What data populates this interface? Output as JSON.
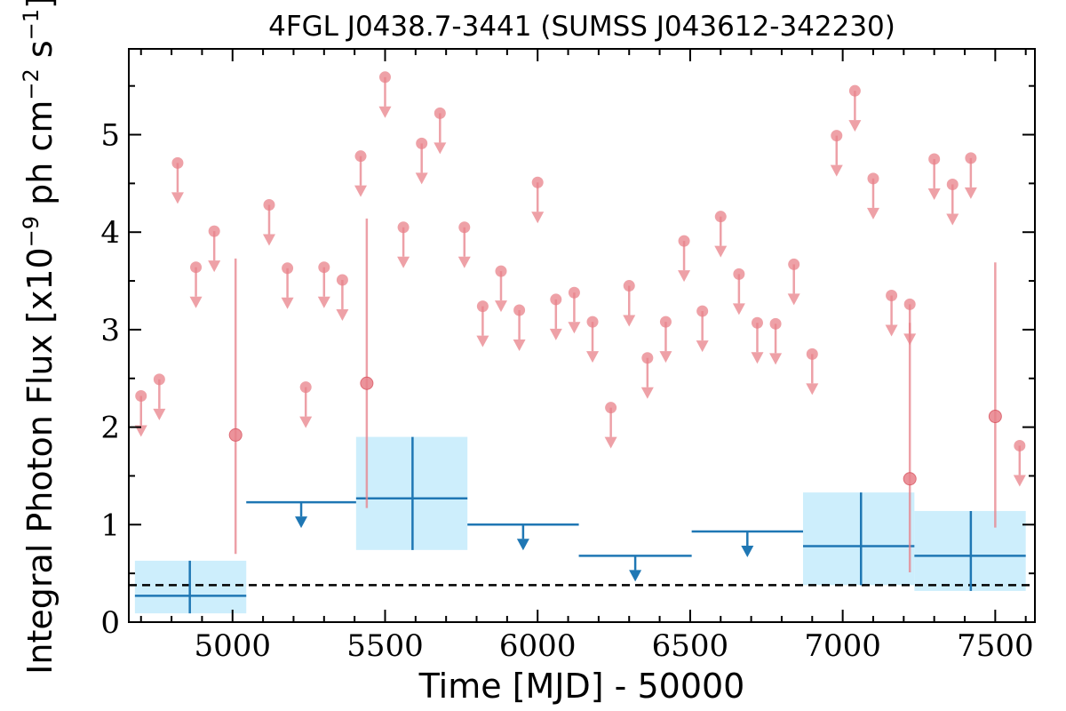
{
  "chart_data": {
    "type": "scatter",
    "title": "4FGL J0438.7-3441 (SUMSS J043612-342230)",
    "xlabel": "Time [MJD] - 50000",
    "ylabel": "Integral Photon Flux [x10",
    "ylabel_exp": "−9",
    "ylabel_units_a": " ph cm",
    "ylabel_units_exp": "−2",
    "ylabel_units_b": " s",
    "ylabel_units_exp2": "−1",
    "ylabel_close": "]",
    "xlim": [
      4660,
      7630
    ],
    "ylim": [
      0,
      5.88
    ],
    "x_ticks": [
      5000,
      5500,
      6000,
      6500,
      7000,
      7500
    ],
    "y_ticks": [
      0,
      1,
      2,
      3,
      4,
      5
    ],
    "colors": {
      "short_bin": "#e8818a",
      "long_bin": "#1f77b4",
      "error_box": "#cdeefc",
      "baseline": "#000000"
    },
    "baseline_level": 0.38,
    "short_bin_upper_limits": [
      {
        "x": 4700,
        "y": 2.32
      },
      {
        "x": 4760,
        "y": 2.49
      },
      {
        "x": 4820,
        "y": 4.71
      },
      {
        "x": 4880,
        "y": 3.64
      },
      {
        "x": 4940,
        "y": 4.01
      },
      {
        "x": 5120,
        "y": 4.28
      },
      {
        "x": 5180,
        "y": 3.63
      },
      {
        "x": 5240,
        "y": 2.41
      },
      {
        "x": 5300,
        "y": 3.64
      },
      {
        "x": 5360,
        "y": 3.51
      },
      {
        "x": 5420,
        "y": 4.78
      },
      {
        "x": 5500,
        "y": 5.59
      },
      {
        "x": 5560,
        "y": 4.05
      },
      {
        "x": 5620,
        "y": 4.91
      },
      {
        "x": 5680,
        "y": 5.22
      },
      {
        "x": 5760,
        "y": 4.05
      },
      {
        "x": 5820,
        "y": 3.24
      },
      {
        "x": 5880,
        "y": 3.6
      },
      {
        "x": 5940,
        "y": 3.2
      },
      {
        "x": 6000,
        "y": 4.51
      },
      {
        "x": 6060,
        "y": 3.31
      },
      {
        "x": 6120,
        "y": 3.38
      },
      {
        "x": 6180,
        "y": 3.08
      },
      {
        "x": 6240,
        "y": 2.2
      },
      {
        "x": 6300,
        "y": 3.45
      },
      {
        "x": 6360,
        "y": 2.71
      },
      {
        "x": 6420,
        "y": 3.08
      },
      {
        "x": 6480,
        "y": 3.91
      },
      {
        "x": 6540,
        "y": 3.19
      },
      {
        "x": 6600,
        "y": 4.16
      },
      {
        "x": 6660,
        "y": 3.57
      },
      {
        "x": 6720,
        "y": 3.07
      },
      {
        "x": 6780,
        "y": 3.06
      },
      {
        "x": 6840,
        "y": 3.67
      },
      {
        "x": 6900,
        "y": 2.75
      },
      {
        "x": 6980,
        "y": 4.99
      },
      {
        "x": 7040,
        "y": 5.45
      },
      {
        "x": 7100,
        "y": 4.55
      },
      {
        "x": 7160,
        "y": 3.35
      },
      {
        "x": 7220,
        "y": 3.26
      },
      {
        "x": 7300,
        "y": 4.75
      },
      {
        "x": 7360,
        "y": 4.49
      },
      {
        "x": 7420,
        "y": 4.76
      },
      {
        "x": 7580,
        "y": 1.81
      }
    ],
    "short_bin_detections": [
      {
        "x": 5010,
        "y": 1.92,
        "ylo": 0.7,
        "yhi": 3.73
      },
      {
        "x": 5440,
        "y": 2.45,
        "ylo": 1.17,
        "yhi": 4.14
      },
      {
        "x": 7220,
        "y": 1.47,
        "ylo": 0.51,
        "yhi": 3.07
      },
      {
        "x": 7500,
        "y": 2.11,
        "ylo": 0.97,
        "yhi": 3.69
      }
    ],
    "long_bin_detections": [
      {
        "x": 4860,
        "x0": 4680,
        "x1": 5045,
        "y": 0.27,
        "ylo": 0.09,
        "yhi": 0.63
      },
      {
        "x": 5590,
        "x0": 5405,
        "x1": 5770,
        "y": 1.27,
        "ylo": 0.74,
        "yhi": 1.9
      },
      {
        "x": 7060,
        "x0": 6870,
        "x1": 7235,
        "y": 0.78,
        "ylo": 0.38,
        "yhi": 1.33
      },
      {
        "x": 7420,
        "x0": 7235,
        "x1": 7600,
        "y": 0.68,
        "ylo": 0.32,
        "yhi": 1.14
      }
    ],
    "long_bin_upper_limits": [
      {
        "x0": 5045,
        "x1": 5405,
        "y": 1.23
      },
      {
        "x0": 5770,
        "x1": 6135,
        "y": 1.0
      },
      {
        "x0": 6135,
        "x1": 6505,
        "y": 0.68
      },
      {
        "x0": 6505,
        "x1": 6870,
        "y": 0.93
      }
    ]
  }
}
